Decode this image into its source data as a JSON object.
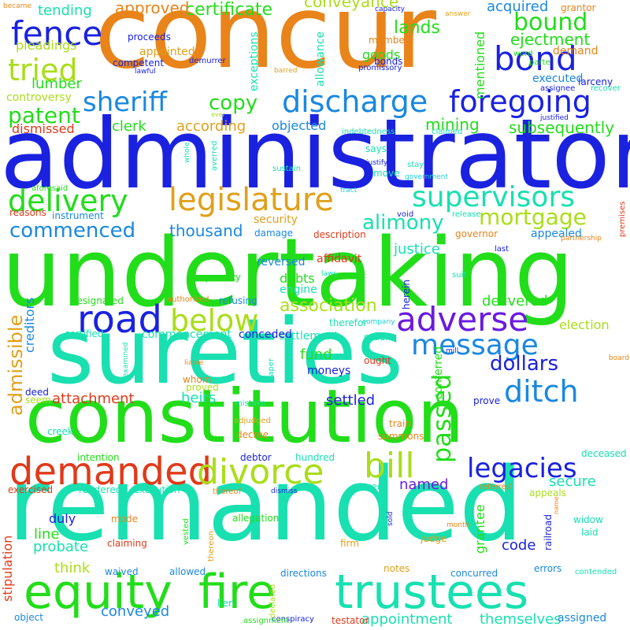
{
  "palette": {
    "orange": "#e8841a",
    "blue": "#1a22e0",
    "green": "#22dd1a",
    "teal": "#18e0b0",
    "red": "#e03a1a",
    "lime": "#aadd1a",
    "gold": "#e0a01a",
    "sky": "#1a88e0",
    "purple": "#6a1ae0",
    "cyan": "#1ad0d8"
  },
  "words": [
    {
      "text": "concur",
      "color": "orange",
      "rotated": false
    },
    {
      "text": "administrator",
      "color": "blue",
      "rotated": false
    },
    {
      "text": "undertaking",
      "color": "green",
      "rotated": false
    },
    {
      "text": "sureties",
      "color": "teal",
      "rotated": false
    },
    {
      "text": "constitution",
      "color": "green",
      "rotated": false
    },
    {
      "text": "remanded",
      "color": "teal",
      "rotated": false
    },
    {
      "text": "equity",
      "color": "green",
      "rotated": false
    },
    {
      "text": "fire",
      "color": "green",
      "rotated": false
    },
    {
      "text": "trustees",
      "color": "teal",
      "rotated": false
    },
    {
      "text": "demanded",
      "color": "red",
      "rotated": false
    },
    {
      "text": "divorce",
      "color": "lime",
      "rotated": false
    },
    {
      "text": "bill",
      "color": "lime",
      "rotated": false
    },
    {
      "text": "legacies",
      "color": "blue",
      "rotated": false
    },
    {
      "text": "road",
      "color": "blue",
      "rotated": false
    },
    {
      "text": "below",
      "color": "lime",
      "rotated": false
    },
    {
      "text": "adverse",
      "color": "purple",
      "rotated": false
    },
    {
      "text": "message",
      "color": "sky",
      "rotated": false
    },
    {
      "text": "ditch",
      "color": "sky",
      "rotated": false
    },
    {
      "text": "dollars",
      "color": "blue",
      "rotated": false
    },
    {
      "text": "passed",
      "color": "green",
      "rotated": true
    },
    {
      "text": "discharge",
      "color": "sky",
      "rotated": false
    },
    {
      "text": "foregoing",
      "color": "blue",
      "rotated": false
    },
    {
      "text": "sheriff",
      "color": "sky",
      "rotated": false
    },
    {
      "text": "copy",
      "color": "green",
      "rotated": false
    },
    {
      "text": "legislature",
      "color": "gold",
      "rotated": false
    },
    {
      "text": "delivery",
      "color": "green",
      "rotated": false
    },
    {
      "text": "supervisors",
      "color": "teal",
      "rotated": false
    },
    {
      "text": "mortgage",
      "color": "lime",
      "rotated": false
    },
    {
      "text": "alimony",
      "color": "teal",
      "rotated": false
    },
    {
      "text": "commenced",
      "color": "sky",
      "rotated": false
    },
    {
      "text": "thousand",
      "color": "sky",
      "rotated": false
    },
    {
      "text": "fence",
      "color": "blue",
      "rotated": false
    },
    {
      "text": "bond",
      "color": "blue",
      "rotated": false
    },
    {
      "text": "bound",
      "color": "green",
      "rotated": false
    },
    {
      "text": "tried",
      "color": "lime",
      "rotated": false
    },
    {
      "text": "patent",
      "color": "green",
      "rotated": false
    },
    {
      "text": "certificate",
      "color": "green",
      "rotated": false
    },
    {
      "text": "approved",
      "color": "orange",
      "rotated": false
    },
    {
      "text": "tending",
      "color": "teal",
      "rotated": false
    },
    {
      "text": "lands",
      "color": "green",
      "rotated": false
    },
    {
      "text": "conveyance",
      "color": "lime",
      "rotated": false
    },
    {
      "text": "acquired",
      "color": "sky",
      "rotated": false
    },
    {
      "text": "ejectment",
      "color": "green",
      "rotated": false
    },
    {
      "text": "clerk",
      "color": "green",
      "rotated": false
    },
    {
      "text": "according",
      "color": "gold",
      "rotated": false
    },
    {
      "text": "objected",
      "color": "sky",
      "rotated": false
    },
    {
      "text": "mining",
      "color": "green",
      "rotated": false
    },
    {
      "text": "subsequently",
      "color": "green",
      "rotated": false
    },
    {
      "text": "lumber",
      "color": "green",
      "rotated": false
    },
    {
      "text": "dismissed",
      "color": "red",
      "rotated": false
    },
    {
      "text": "association",
      "color": "lime",
      "rotated": false
    },
    {
      "text": "delivered",
      "color": "green",
      "rotated": false
    },
    {
      "text": "admissible",
      "color": "gold",
      "rotated": true
    },
    {
      "text": "settled",
      "color": "blue",
      "rotated": false
    },
    {
      "text": "heirs",
      "color": "teal",
      "rotated": false
    },
    {
      "text": "fund",
      "color": "green",
      "rotated": false
    },
    {
      "text": "attachment",
      "color": "red",
      "rotated": false
    },
    {
      "text": "named",
      "color": "purple",
      "rotated": false
    },
    {
      "text": "secure",
      "color": "teal",
      "rotated": false
    },
    {
      "text": "code",
      "color": "blue",
      "rotated": false
    },
    {
      "text": "think",
      "color": "lime",
      "rotated": false
    },
    {
      "text": "probate",
      "color": "teal",
      "rotated": false
    },
    {
      "text": "line",
      "color": "green",
      "rotated": false
    },
    {
      "text": "duly",
      "color": "blue",
      "rotated": false
    },
    {
      "text": "conveyed",
      "color": "sky",
      "rotated": false
    },
    {
      "text": "themselves",
      "color": "teal",
      "rotated": false
    },
    {
      "text": "appointment",
      "color": "teal",
      "rotated": false
    },
    {
      "text": "stipulation",
      "color": "red",
      "rotated": true
    },
    {
      "text": "creditors",
      "color": "sky",
      "rotated": true
    },
    {
      "text": "grantee",
      "color": "green",
      "rotated": true
    },
    {
      "text": "mentioned",
      "color": "green",
      "rotated": true
    },
    {
      "text": "allowance",
      "color": "teal",
      "rotated": true
    },
    {
      "text": "exceptions",
      "color": "teal",
      "rotated": true
    },
    {
      "text": "conferred",
      "color": "green",
      "rotated": true
    },
    {
      "text": "justice",
      "color": "teal",
      "rotated": false
    },
    {
      "text": "security",
      "color": "gold",
      "rotated": false
    },
    {
      "text": "debts",
      "color": "green",
      "rotated": false
    },
    {
      "text": "engine",
      "color": "teal",
      "rotated": false
    },
    {
      "text": "reversed",
      "color": "sky",
      "rotated": false
    },
    {
      "text": "affidavit",
      "color": "red",
      "rotated": false
    },
    {
      "text": "election",
      "color": "lime",
      "rotated": false
    },
    {
      "text": "demand",
      "color": "orange",
      "rotated": false
    },
    {
      "text": "executed",
      "color": "sky",
      "rotated": false
    },
    {
      "text": "assigned",
      "color": "sky",
      "rotated": false
    },
    {
      "text": "appealed",
      "color": "sky",
      "rotated": false
    },
    {
      "text": "reasons",
      "color": "red",
      "rotated": false
    },
    {
      "text": "instrument",
      "color": "sky",
      "rotated": false
    },
    {
      "text": "damage",
      "color": "sky",
      "rotated": false
    },
    {
      "text": "description",
      "color": "red",
      "rotated": false
    },
    {
      "text": "governor",
      "color": "orange",
      "rotated": false
    },
    {
      "text": "pleadings",
      "color": "lime",
      "rotated": false
    },
    {
      "text": "appointed",
      "color": "gold",
      "rotated": false
    },
    {
      "text": "controversy",
      "color": "lime",
      "rotated": false
    },
    {
      "text": "competent",
      "color": "blue",
      "rotated": false
    },
    {
      "text": "proceeds",
      "color": "blue",
      "rotated": false
    },
    {
      "text": "goods",
      "color": "green",
      "rotated": false
    },
    {
      "text": "member",
      "color": "orange",
      "rotated": false
    },
    {
      "text": "bonds",
      "color": "blue",
      "rotated": false
    },
    {
      "text": "promissory",
      "color": "blue",
      "rotated": false
    },
    {
      "text": "settlement",
      "color": "teal",
      "rotated": false
    },
    {
      "text": "certified",
      "color": "teal",
      "rotated": false
    },
    {
      "text": "commencement",
      "color": "teal",
      "rotated": false
    },
    {
      "text": "conceded",
      "color": "blue",
      "rotated": false
    },
    {
      "text": "orders",
      "color": "teal",
      "rotated": false
    },
    {
      "text": "designated",
      "color": "green",
      "rotated": false
    },
    {
      "text": "refusing",
      "color": "sky",
      "rotated": false
    },
    {
      "text": "quantity",
      "color": "green",
      "rotated": false
    },
    {
      "text": "moneys",
      "color": "blue",
      "rotated": false
    },
    {
      "text": "ought",
      "color": "red",
      "rotated": false
    },
    {
      "text": "whom",
      "color": "orange",
      "rotated": false
    },
    {
      "text": "proved",
      "color": "lime",
      "rotated": false
    },
    {
      "text": "deed",
      "color": "blue",
      "rotated": false
    },
    {
      "text": "seem",
      "color": "lime",
      "rotated": false
    },
    {
      "text": "creek",
      "color": "teal",
      "rotated": false
    },
    {
      "text": "decree",
      "color": "orange",
      "rotated": false
    },
    {
      "text": "adjudged",
      "color": "gold",
      "rotated": false
    },
    {
      "text": "train",
      "color": "orange",
      "rotated": false
    },
    {
      "text": "summons",
      "color": "orange",
      "rotated": false
    },
    {
      "text": "intention",
      "color": "green",
      "rotated": false
    },
    {
      "text": "debtor",
      "color": "blue",
      "rotated": false
    },
    {
      "text": "hundred",
      "color": "teal",
      "rotated": false
    },
    {
      "text": "deceased",
      "color": "teal",
      "rotated": false
    },
    {
      "text": "exercised",
      "color": "red",
      "rotated": false
    },
    {
      "text": "rendered",
      "color": "teal",
      "rotated": false
    },
    {
      "text": "execution",
      "color": "teal",
      "rotated": false
    },
    {
      "text": "served",
      "color": "teal",
      "rotated": false
    },
    {
      "text": "referred",
      "color": "orange",
      "rotated": false
    },
    {
      "text": "appeals",
      "color": "lime",
      "rotated": false
    },
    {
      "text": "allegation",
      "color": "green",
      "rotated": false
    },
    {
      "text": "claiming",
      "color": "red",
      "rotated": false
    },
    {
      "text": "judge",
      "color": "gold",
      "rotated": false
    },
    {
      "text": "laid",
      "color": "teal",
      "rotated": false
    },
    {
      "text": "widow",
      "color": "teal",
      "rotated": false
    },
    {
      "text": "firm",
      "color": "gold",
      "rotated": false
    },
    {
      "text": "waived",
      "color": "sky",
      "rotated": false
    },
    {
      "text": "allowed",
      "color": "sky",
      "rotated": false
    },
    {
      "text": "directions",
      "color": "sky",
      "rotated": false
    },
    {
      "text": "notes",
      "color": "gold",
      "rotated": false
    },
    {
      "text": "concurred",
      "color": "sky",
      "rotated": false
    },
    {
      "text": "errors",
      "color": "sky",
      "rotated": false
    },
    {
      "text": "contended",
      "color": "teal",
      "rotated": false
    },
    {
      "text": "object",
      "color": "sky",
      "rotated": false
    },
    {
      "text": "lien",
      "color": "teal",
      "rotated": false
    },
    {
      "text": "conspiracy",
      "color": "blue",
      "rotated": false
    },
    {
      "text": "assignment",
      "color": "green",
      "rotated": false
    },
    {
      "text": "testator",
      "color": "red",
      "rotated": false
    },
    {
      "text": "grantor",
      "color": "orange",
      "rotated": false
    },
    {
      "text": "became",
      "color": "orange",
      "rotated": false
    },
    {
      "text": "capacity",
      "color": "blue",
      "rotated": false
    },
    {
      "text": "answer",
      "color": "gold",
      "rotated": false
    },
    {
      "text": "word",
      "color": "green",
      "rotated": false
    },
    {
      "text": "parte",
      "color": "green",
      "rotated": false
    },
    {
      "text": "larceny",
      "color": "blue",
      "rotated": false
    },
    {
      "text": "recover",
      "color": "teal",
      "rotated": false
    },
    {
      "text": "assignee",
      "color": "blue",
      "rotated": false
    },
    {
      "text": "justified",
      "color": "blue",
      "rotated": false
    },
    {
      "text": "claimed",
      "color": "teal",
      "rotated": false
    },
    {
      "text": "indebtedness",
      "color": "teal",
      "rotated": false
    },
    {
      "text": "lawful",
      "color": "blue",
      "rotated": false
    },
    {
      "text": "demurrer",
      "color": "blue",
      "rotated": false
    },
    {
      "text": "barred",
      "color": "gold",
      "rotated": false
    },
    {
      "text": "says",
      "color": "teal",
      "rotated": false
    },
    {
      "text": "justify",
      "color": "blue",
      "rotated": false
    },
    {
      "text": "stay",
      "color": "teal",
      "rotated": false
    },
    {
      "text": "move",
      "color": "teal",
      "rotated": false
    },
    {
      "text": "government",
      "color": "cyan",
      "rotated": false
    },
    {
      "text": "sustain",
      "color": "teal",
      "rotated": false
    },
    {
      "text": "aforesaid",
      "color": "green",
      "rotated": false
    },
    {
      "text": "tract",
      "color": "cyan",
      "rotated": false
    },
    {
      "text": "void",
      "color": "blue",
      "rotated": false
    },
    {
      "text": "release",
      "color": "teal",
      "rotated": false
    },
    {
      "text": "partnership",
      "color": "orange",
      "rotated": false
    },
    {
      "text": "last",
      "color": "blue",
      "rotated": false
    },
    {
      "text": "laws",
      "color": "teal",
      "rotated": false
    },
    {
      "text": "suit",
      "color": "teal",
      "rotated": false
    },
    {
      "text": "company",
      "color": "cyan",
      "rotated": false
    },
    {
      "text": "authorized",
      "color": "orange",
      "rotated": false
    },
    {
      "text": "herein",
      "color": "blue",
      "rotated": true
    },
    {
      "text": "therefor",
      "color": "teal",
      "rotated": false
    },
    {
      "text": "liable",
      "color": "orange",
      "rotated": false
    },
    {
      "text": "paper",
      "color": "teal",
      "rotated": true
    },
    {
      "text": "mistake",
      "color": "teal",
      "rotated": false
    },
    {
      "text": "mill",
      "color": "blue",
      "rotated": false
    },
    {
      "text": "prove",
      "color": "blue",
      "rotated": false
    },
    {
      "text": "board",
      "color": "orange",
      "rotated": false
    },
    {
      "text": "premises",
      "color": "red",
      "rotated": true
    },
    {
      "text": "examined",
      "color": "teal",
      "rotated": true
    },
    {
      "text": "whole",
      "color": "teal",
      "rotated": true
    },
    {
      "text": "averred",
      "color": "teal",
      "rotated": true
    },
    {
      "text": "ever",
      "color": "lime",
      "rotated": false
    },
    {
      "text": "vested",
      "color": "green",
      "rotated": true
    },
    {
      "text": "thereon",
      "color": "gold",
      "rotated": true
    },
    {
      "text": "declared",
      "color": "lime",
      "rotated": true
    },
    {
      "text": "dismiss",
      "color": "blue",
      "rotated": false
    },
    {
      "text": "thereof",
      "color": "orange",
      "rotated": false
    },
    {
      "text": "mode",
      "color": "orange",
      "rotated": false
    },
    {
      "text": "railroad",
      "color": "blue",
      "rotated": true
    },
    {
      "text": "sold",
      "color": "blue",
      "rotated": true
    },
    {
      "text": "month",
      "color": "orange",
      "rotated": false
    },
    {
      "text": "name",
      "color": "orange",
      "rotated": true
    }
  ]
}
